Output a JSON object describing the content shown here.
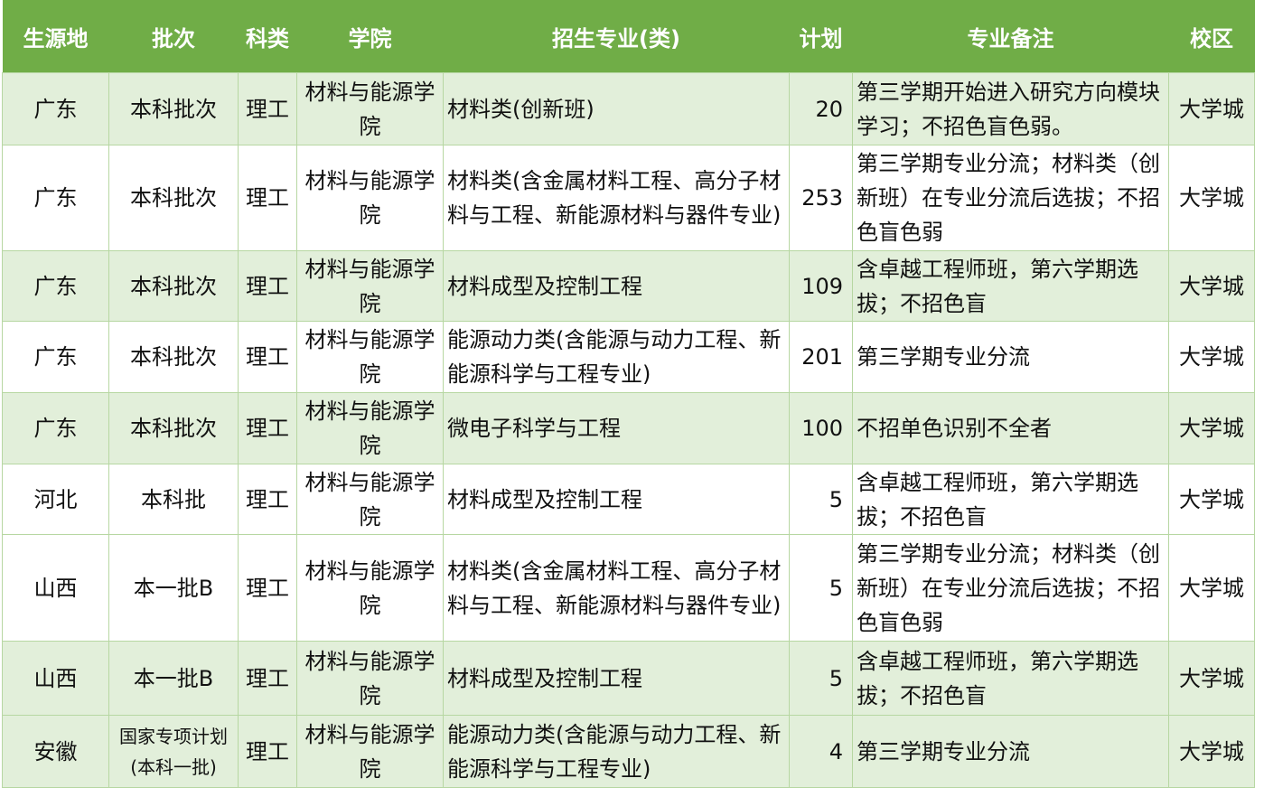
{
  "colors": {
    "header": "#70ad47",
    "row_alt": "#e2efda"
  },
  "headers": [
    "生源地",
    "批次",
    "科类",
    "学院",
    "招生专业(类)",
    "计划",
    "专业备注",
    "校区"
  ],
  "rows": [
    {
      "source": "广东",
      "batch": "本科批次",
      "category": "理工",
      "college": "材料与能源学院",
      "major": "材料类(创新班)",
      "plan": "20",
      "note": "第三学期开始进入研究方向模块学习；不招色盲色弱。",
      "campus": "大学城"
    },
    {
      "source": "广东",
      "batch": "本科批次",
      "category": "理工",
      "college": "材料与能源学院",
      "major": "材料类(含金属材料工程、高分子材料与工程、新能源材料与器件专业)",
      "plan": "253",
      "note": "第三学期专业分流；材料类（创新班）在专业分流后选拔；不招色盲色弱",
      "campus": "大学城"
    },
    {
      "source": "广东",
      "batch": "本科批次",
      "category": "理工",
      "college": "材料与能源学院",
      "major": "材料成型及控制工程",
      "plan": "109",
      "note": "含卓越工程师班，第六学期选拔；不招色盲",
      "campus": "大学城"
    },
    {
      "source": "广东",
      "batch": "本科批次",
      "category": "理工",
      "college": "材料与能源学院",
      "major": "能源动力类(含能源与动力工程、新能源科学与工程专业)",
      "plan": "201",
      "note": "第三学期专业分流",
      "campus": "大学城"
    },
    {
      "source": "广东",
      "batch": "本科批次",
      "category": "理工",
      "college": "材料与能源学院",
      "major": "微电子科学与工程",
      "plan": "100",
      "note": "不招单色识别不全者",
      "campus": "大学城"
    },
    {
      "source": "河北",
      "batch": "本科批",
      "category": "理工",
      "college": "材料与能源学院",
      "major": "材料成型及控制工程",
      "plan": "5",
      "note": "含卓越工程师班，第六学期选拔；不招色盲",
      "campus": "大学城"
    },
    {
      "source": "山西",
      "batch": "本一批B",
      "category": "理工",
      "college": "材料与能源学院",
      "major": "材料类(含金属材料工程、高分子材料与工程、新能源材料与器件专业)",
      "plan": "5",
      "note": "第三学期专业分流；材料类（创新班）在专业分流后选拔；不招色盲色弱",
      "campus": "大学城"
    },
    {
      "source": "山西",
      "batch": "本一批B",
      "category": "理工",
      "college": "材料与能源学院",
      "major": "材料成型及控制工程",
      "plan": "5",
      "note": "含卓越工程师班，第六学期选拔；不招色盲",
      "campus": "大学城"
    },
    {
      "source": "安徽",
      "batch": "国家专项计划(本科一批)",
      "category": "理工",
      "college": "材料与能源学院",
      "major": "能源动力类(含能源与动力工程、新能源科学与工程专业)",
      "plan": "4",
      "note": "第三学期专业分流",
      "campus": "大学城"
    }
  ]
}
